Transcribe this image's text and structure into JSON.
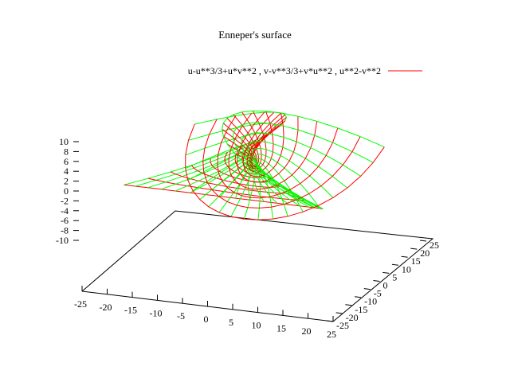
{
  "chart_data": {
    "type": "surface",
    "title": "Enneper's surface",
    "series": [
      {
        "name": "u-u**3/3+u*v**2 , v-v**3/3+v*u**2 , u**2-v**2",
        "color": "#ff0000",
        "hidden_color": "#00ff00",
        "x_expr": "u-u**3/3+u*v**2",
        "y_expr": "v-v**3/3+v*u**2",
        "z_expr": "u**2-v**2",
        "u_range": [
          -3,
          3
        ],
        "v_range": [
          -3,
          3
        ]
      }
    ],
    "x_axis": {
      "ticks": [
        "-25",
        "-20",
        "-15",
        "-10",
        "-5",
        "0",
        "5",
        "10",
        "15",
        "20",
        "25"
      ]
    },
    "y_axis": {
      "ticks": [
        "-25",
        "-20",
        "-15",
        "-10",
        "-5",
        "0",
        "5",
        "10",
        "15",
        "20",
        "25"
      ]
    },
    "z_axis": {
      "ticks": [
        "-10",
        "-8",
        "-6",
        "-4",
        "-2",
        "0",
        "2",
        "4",
        "6",
        "8",
        "10"
      ]
    },
    "xlim": [
      -25,
      25
    ],
    "ylim": [
      -25,
      25
    ],
    "zlim": [
      -10,
      10
    ],
    "grid": false,
    "legend_position": "top-right"
  }
}
